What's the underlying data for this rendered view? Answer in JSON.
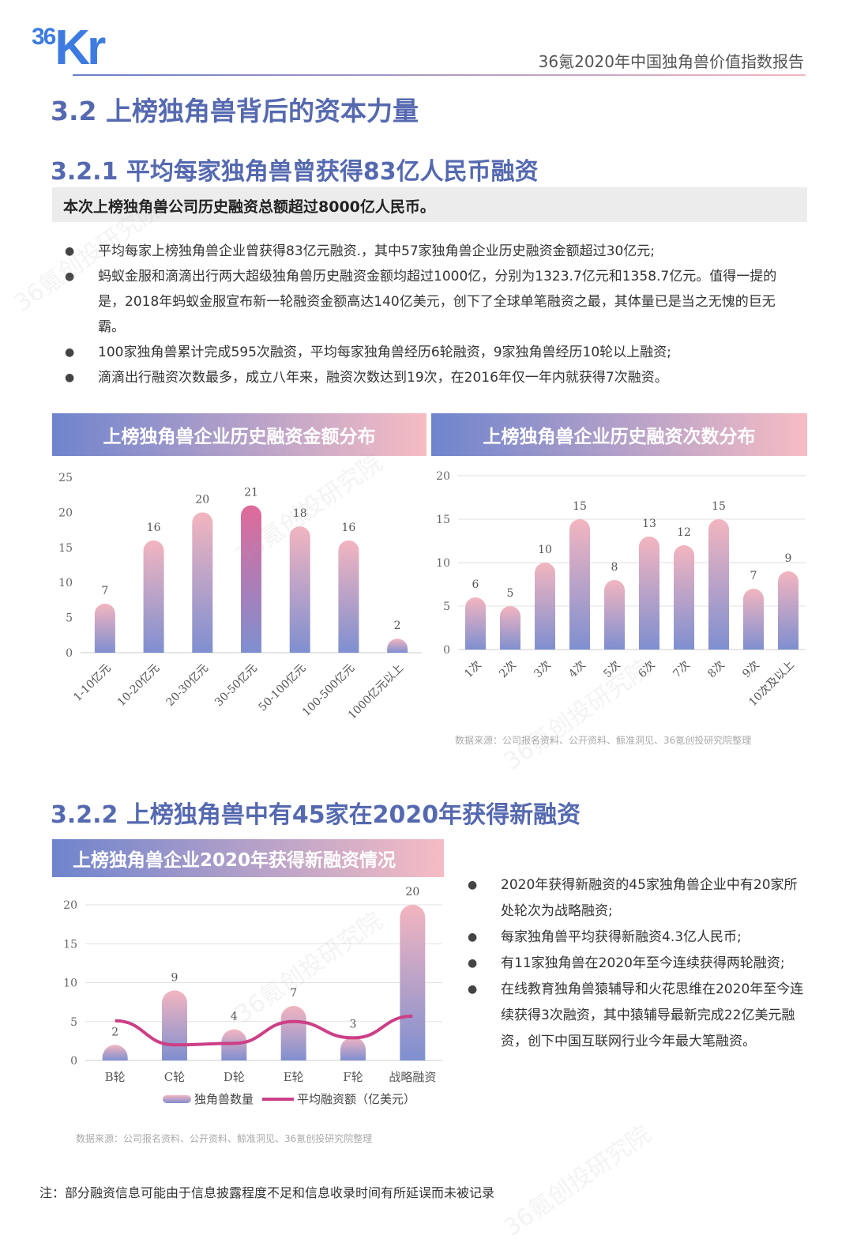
{
  "header": {
    "logo_text": "36Kr",
    "logo_num": "36",
    "logo_letters": "Kr",
    "report_title": "36氪2020年中国独角兽价值指数报告"
  },
  "section": {
    "title": "3.2 上榜独角兽背后的资本力量"
  },
  "sub1": {
    "title": "3.2.1 平均每家独角兽曾获得83亿人民币融资",
    "summary": "本次上榜独角兽公司历史融资总额超过8000亿人民币。",
    "bullets": [
      "平均每家上榜独角兽企业曾获得83亿元融资.，其中57家独角兽企业历史融资金额超过30亿元;",
      "蚂蚁金服和滴滴出行两大超级独角兽历史融资金额均超过1000亿，分别为1323.7亿元和1358.7亿元。值得一提的是，2018年蚂蚁金服宣布新一轮融资金额高达140亿美元，创下了全球单笔融资之最，其体量已是当之无愧的巨无霸。",
      "100家独角兽累计完成595次融资，平均每家独角兽经历6轮融资，9家独角兽经历10轮以上融资;",
      "滴滴出行融资次数最多，成立八年来，融资次数达到19次，在2016年仅一年内就获得7次融资。"
    ],
    "source": "数据来源：公司报名资料、公开资料、鲸准洞见、36氪创投研究院整理"
  },
  "sub2": {
    "title": "3.2.2 上榜独角兽中有45家在2020年获得新融资",
    "bullets": [
      "2020年获得新融资的45家独角兽企业中有20家所处轮次为战略融资;",
      "每家独角兽平均获得新融资4.3亿人民币;",
      "有11家独角兽在2020年至今连续获得两轮融资;",
      "在线教育独角兽猿辅导和火花思维在2020年至今连续获得3次融资，其中猿辅导最新完成22亿美元融资，创下中国互联网行业今年最大笔融资。"
    ],
    "source": "数据来源：公司报名资料、公开资料、鲸准洞见、36氪创投研究院整理"
  },
  "note": "注：部分融资信息可能由于信息披露程度不足和信息收录时间有所延误而未被记录",
  "watermark": "36氪创投研究院",
  "colors": {
    "accent": "#5569b0",
    "bar_top": "#f3b5c0",
    "bar_bottom": "#7f8fd0",
    "bar_highlight": "#e06a9a",
    "line": "#cc3f86"
  },
  "chart_data": [
    {
      "type": "bar",
      "title": "上榜独角兽企业历史融资金额分布",
      "categories": [
        "1-10亿元",
        "10-20亿元",
        "20-30亿元",
        "30-50亿元",
        "50-100亿元",
        "100-500亿元",
        "1000亿元以上"
      ],
      "values": [
        7,
        16,
        20,
        21,
        18,
        16,
        2
      ],
      "ylim": [
        0,
        25
      ],
      "yticks": [
        0,
        5,
        10,
        15,
        20,
        25
      ],
      "grid": false
    },
    {
      "type": "bar",
      "title": "上榜独角兽企业历史融资次数分布",
      "categories": [
        "1次",
        "2次",
        "3次",
        "4次",
        "5次",
        "6次",
        "7次",
        "8次",
        "9次",
        "10次及以上"
      ],
      "values": [
        6,
        5,
        10,
        15,
        8,
        13,
        12,
        15,
        7,
        9
      ],
      "ylim": [
        0,
        20
      ],
      "yticks": [
        0,
        5,
        10,
        15,
        20
      ],
      "grid": true
    },
    {
      "type": "bar+line",
      "title": "上榜独角兽企业2020年获得新融资情况",
      "categories": [
        "B轮",
        "C轮",
        "D轮",
        "E轮",
        "F轮",
        "战略融资"
      ],
      "series": [
        {
          "name": "独角兽数量",
          "type": "bar",
          "values": [
            2,
            9,
            4,
            7,
            3,
            20
          ]
        },
        {
          "name": "平均融资额（亿美元）",
          "type": "line",
          "values": [
            5.1,
            2.0,
            2.2,
            5.0,
            2.9,
            5.7
          ]
        }
      ],
      "ylim": [
        0,
        20
      ],
      "yticks": [
        0,
        5,
        10,
        15,
        20
      ],
      "grid": true,
      "legend": "bottom"
    }
  ]
}
